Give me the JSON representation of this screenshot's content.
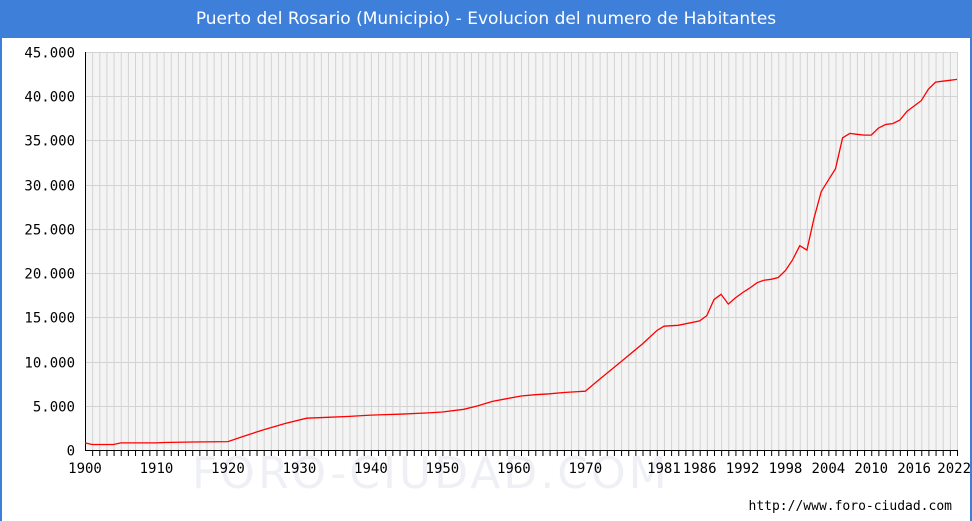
{
  "header": {
    "title": "Puerto del Rosario (Municipio) - Evolucion del numero de Habitantes"
  },
  "footer": {
    "watermark": "FORO-CIUDAD.COM",
    "source_url": "http://www.foro-ciudad.com"
  },
  "colors": {
    "header_bg": "#3d7fd9",
    "line": "#ff0000",
    "grid": "#d3d3d3",
    "plot_bg": "#f4f4f4"
  },
  "chart_data": {
    "type": "line",
    "title": "Puerto del Rosario (Municipio) - Evolucion del numero de Habitantes",
    "xlabel": "",
    "ylabel": "",
    "xlim": [
      1900,
      2022
    ],
    "ylim": [
      0,
      45000
    ],
    "grid": true,
    "legend": "none",
    "x_ticks": [
      1900,
      1910,
      1920,
      1930,
      1940,
      1950,
      1960,
      1970,
      1981,
      1986,
      1992,
      1998,
      2004,
      2010,
      2016,
      2022
    ],
    "x_tick_labels": [
      "1900",
      "1910",
      "1920",
      "1930",
      "1940",
      "1950",
      "1960",
      "1970",
      "1981",
      "1986",
      "1992",
      "1998",
      "2004",
      "2010",
      "2016",
      "2022"
    ],
    "y_ticks": [
      0,
      5000,
      10000,
      15000,
      20000,
      25000,
      30000,
      35000,
      40000,
      45000
    ],
    "y_tick_labels": [
      "0",
      "5.000",
      "10.000",
      "15.000",
      "20.000",
      "25.000",
      "30.000",
      "35.000",
      "40.000",
      "45.000"
    ],
    "series": [
      {
        "x": [
          1900,
          1901,
          1904,
          1905,
          1910,
          1911,
          1915,
          1920,
          1922,
          1925,
          1928,
          1931,
          1934,
          1937,
          1940,
          1944,
          1948,
          1950,
          1953,
          1955,
          1957,
          1959,
          1961,
          1963,
          1965,
          1967,
          1969,
          1970,
          1972,
          1975,
          1978,
          1980,
          1981,
          1983,
          1986,
          1987,
          1988,
          1989,
          1990,
          1991,
          1992,
          1993,
          1994,
          1995,
          1996,
          1997,
          1998,
          1999,
          2000,
          2001,
          2002,
          2003,
          2004,
          2005,
          2006,
          2007,
          2008,
          2009,
          2010,
          2011,
          2012,
          2013,
          2014,
          2015,
          2016,
          2017,
          2018,
          2019,
          2020,
          2021,
          2022
        ],
        "values": [
          800,
          620,
          620,
          800,
          800,
          850,
          900,
          950,
          1500,
          2300,
          3000,
          3600,
          3700,
          3800,
          3950,
          4050,
          4200,
          4300,
          4600,
          5000,
          5500,
          5800,
          6100,
          6250,
          6350,
          6500,
          6600,
          6650,
          8000,
          10000,
          12000,
          13500,
          14000,
          14100,
          14600,
          15200,
          17000,
          17600,
          16500,
          17200,
          17800,
          18300,
          18900,
          19200,
          19300,
          19500,
          20300,
          21500,
          23100,
          22600,
          26200,
          29200,
          30500,
          31800,
          35300,
          35800,
          35700,
          35600,
          35600,
          36400,
          36800,
          36900,
          37300,
          38300,
          38900,
          39500,
          40800,
          41600,
          41700,
          41800,
          41900
        ]
      }
    ]
  }
}
